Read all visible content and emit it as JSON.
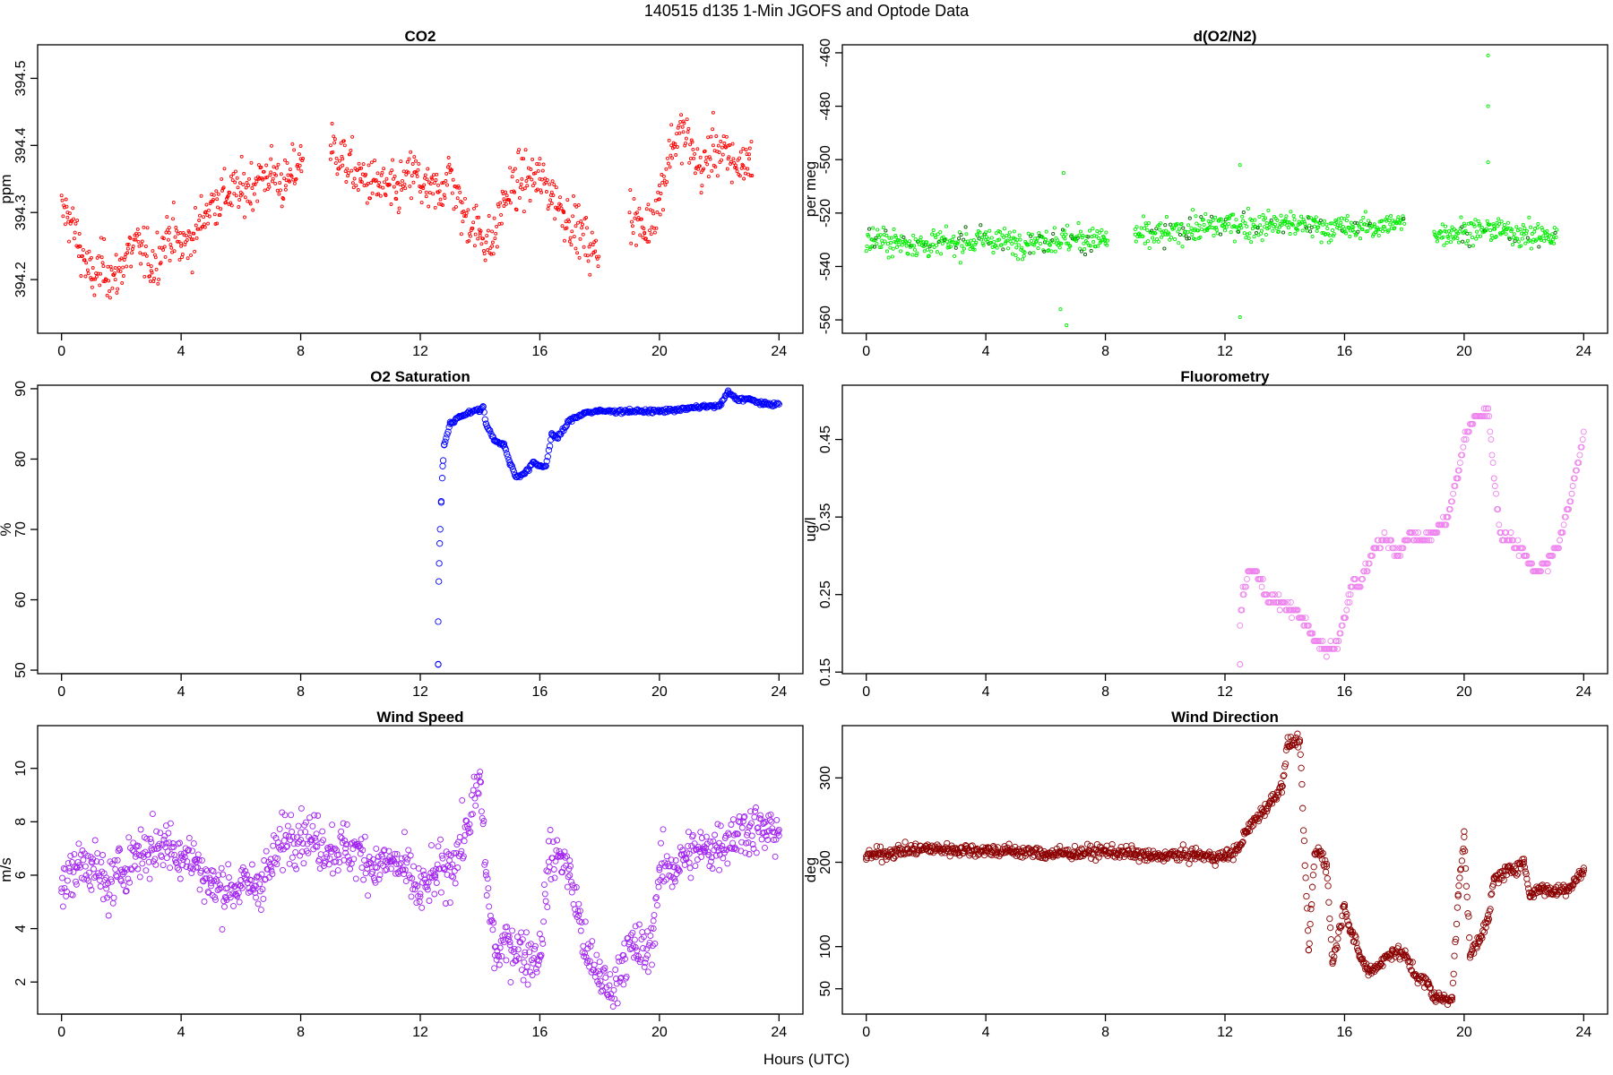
{
  "figure": {
    "title": "140515   d135   1-Min  JGOFS and Optode Data",
    "xlabel": "Hours (UTC)"
  },
  "chart_data": [
    {
      "id": "co2",
      "type": "scatter",
      "title": "CO2",
      "ylabel": "ppm",
      "color": "#ff0000",
      "xlim": [
        -0.8,
        24.8
      ],
      "ylim": [
        394.12,
        394.55
      ],
      "x_ticks": [
        0,
        4,
        8,
        12,
        16,
        20,
        24
      ],
      "y_ticks": [
        394.2,
        394.3,
        394.4,
        394.5
      ],
      "y_tick_labels": [
        "394.2",
        "394.3",
        "394.4",
        "394.5"
      ],
      "y_label_rotated": true,
      "marker": "small open circle",
      "point_interval_min": 1,
      "points": [
        [
          0.2,
          394.3
        ],
        [
          0.6,
          394.25
        ],
        [
          1.0,
          394.2
        ],
        [
          1.4,
          394.22
        ],
        [
          1.8,
          394.2
        ],
        [
          2.2,
          394.24
        ],
        [
          2.6,
          394.25
        ],
        [
          3.0,
          394.22
        ],
        [
          3.6,
          394.27
        ],
        [
          4.0,
          394.25
        ],
        [
          4.4,
          394.26
        ],
        [
          4.8,
          394.3
        ],
        [
          5.2,
          394.32
        ],
        [
          5.6,
          394.33
        ],
        [
          6.0,
          394.33
        ],
        [
          6.6,
          394.35
        ],
        [
          7.0,
          394.36
        ],
        [
          7.5,
          394.34
        ],
        [
          8.0,
          394.38
        ],
        [
          9.0,
          394.4
        ],
        [
          9.4,
          394.38
        ],
        [
          10.0,
          394.35
        ],
        [
          10.6,
          394.34
        ],
        [
          11.2,
          394.33
        ],
        [
          11.8,
          394.36
        ],
        [
          12.2,
          394.33
        ],
        [
          12.6,
          394.33
        ],
        [
          13.0,
          394.36
        ],
        [
          13.4,
          394.3
        ],
        [
          14.0,
          394.27
        ],
        [
          14.4,
          394.25
        ],
        [
          14.8,
          394.32
        ],
        [
          15.4,
          394.35
        ],
        [
          16.0,
          394.35
        ],
        [
          16.4,
          394.33
        ],
        [
          16.8,
          394.3
        ],
        [
          17.2,
          394.28
        ],
        [
          17.8,
          394.24
        ],
        [
          19.0,
          394.3
        ],
        [
          19.5,
          394.27
        ],
        [
          20.0,
          394.32
        ],
        [
          20.4,
          394.4
        ],
        [
          20.8,
          394.42
        ],
        [
          21.4,
          394.36
        ],
        [
          21.8,
          394.4
        ],
        [
          22.3,
          394.38
        ],
        [
          22.8,
          394.37
        ],
        [
          23.0,
          394.38
        ]
      ],
      "gaps_hours": [
        [
          8.1,
          9.0
        ],
        [
          18.0,
          19.0
        ]
      ],
      "x_range_hours": [
        0,
        23.1
      ]
    },
    {
      "id": "do2n2",
      "type": "scatter",
      "title": "d(O2/N2)",
      "ylabel": "per meg",
      "color": "#00ee00",
      "xlim": [
        -0.8,
        24.8
      ],
      "ylim": [
        -565,
        -457
      ],
      "x_ticks": [
        0,
        4,
        8,
        12,
        16,
        20,
        24
      ],
      "y_ticks": [
        -560,
        -540,
        -520,
        -500,
        -480,
        -460
      ],
      "y_tick_labels": [
        "-560",
        "-540",
        "-520",
        "-500",
        "-480",
        "-460"
      ],
      "y_label_rotated": true,
      "marker": "small open circle",
      "point_interval_min": 1,
      "points": [
        [
          0.2,
          -530
        ],
        [
          1.0,
          -531
        ],
        [
          2.0,
          -532
        ],
        [
          3.0,
          -531
        ],
        [
          4.0,
          -530
        ],
        [
          5.0,
          -531
        ],
        [
          6.0,
          -530
        ],
        [
          7.0,
          -530
        ],
        [
          8.0,
          -530
        ],
        [
          9.0,
          -528
        ],
        [
          10.0,
          -528
        ],
        [
          11.0,
          -526
        ],
        [
          12.0,
          -524
        ],
        [
          13.0,
          -525
        ],
        [
          14.0,
          -524
        ],
        [
          15.0,
          -525
        ],
        [
          16.0,
          -526
        ],
        [
          17.0,
          -525
        ],
        [
          18.0,
          -524
        ],
        [
          19.0,
          -527
        ],
        [
          20.0,
          -527
        ],
        [
          21.0,
          -526
        ],
        [
          22.0,
          -528
        ],
        [
          23.0,
          -529
        ]
      ],
      "outliers": [
        [
          6.6,
          -505
        ],
        [
          6.7,
          -562
        ],
        [
          6.5,
          -556
        ],
        [
          12.5,
          -502
        ],
        [
          12.5,
          -559
        ],
        [
          20.8,
          -461
        ],
        [
          20.8,
          -480
        ],
        [
          20.8,
          -501
        ]
      ],
      "gaps_hours": [
        [
          8.1,
          9.0
        ],
        [
          18.0,
          19.0
        ]
      ],
      "x_range_hours": [
        0,
        23.1
      ]
    },
    {
      "id": "o2sat",
      "type": "scatter",
      "title": "O2 Saturation",
      "ylabel": "%",
      "color": "#0000ff",
      "xlim": [
        -0.8,
        24.8
      ],
      "ylim": [
        49.5,
        90.5
      ],
      "x_ticks": [
        0,
        4,
        8,
        12,
        16,
        20,
        24
      ],
      "y_ticks": [
        50,
        60,
        70,
        80,
        90
      ],
      "y_tick_labels": [
        "50",
        "60",
        "70",
        "80",
        "90"
      ],
      "y_label_rotated": true,
      "marker": "open circle",
      "point_interval_min": 1,
      "points": [
        [
          12.6,
          50.8
        ],
        [
          12.6,
          56.9
        ],
        [
          12.62,
          62.6
        ],
        [
          12.65,
          68.0
        ],
        [
          12.7,
          74.0
        ],
        [
          12.75,
          79.0
        ],
        [
          12.8,
          82.0
        ],
        [
          13.0,
          85.0
        ],
        [
          13.3,
          86.0
        ],
        [
          13.6,
          86.6
        ],
        [
          14.0,
          87.0
        ],
        [
          14.1,
          87.4
        ],
        [
          14.2,
          85.0
        ],
        [
          14.5,
          82.6
        ],
        [
          14.8,
          82.0
        ],
        [
          15.0,
          79.5
        ],
        [
          15.2,
          77.5
        ],
        [
          15.5,
          78.0
        ],
        [
          15.8,
          79.5
        ],
        [
          16.0,
          79.0
        ],
        [
          16.2,
          79.0
        ],
        [
          16.4,
          83.5
        ],
        [
          16.6,
          83.0
        ],
        [
          17.0,
          85.5
        ],
        [
          17.5,
          86.6
        ],
        [
          18.0,
          86.8
        ],
        [
          19.0,
          86.8
        ],
        [
          20.0,
          86.8
        ],
        [
          20.5,
          87.0
        ],
        [
          21.0,
          87.2
        ],
        [
          21.5,
          87.5
        ],
        [
          22.0,
          87.5
        ],
        [
          22.3,
          89.5
        ],
        [
          22.6,
          88.5
        ],
        [
          23.0,
          88.5
        ],
        [
          23.5,
          87.8
        ],
        [
          24.0,
          87.8
        ]
      ],
      "x_range_hours": [
        12.6,
        24.0
      ]
    },
    {
      "id": "fluor",
      "type": "scatter",
      "title": "Fluorometry",
      "ylabel": "ug/l",
      "color": "#ee82ee",
      "xlim": [
        -0.8,
        24.8
      ],
      "ylim": [
        0.148,
        0.52
      ],
      "x_ticks": [
        0,
        4,
        8,
        12,
        16,
        20,
        24
      ],
      "y_ticks": [
        0.15,
        0.25,
        0.35,
        0.45
      ],
      "y_tick_labels": [
        "0.15",
        "0.25",
        "0.35",
        "0.45"
      ],
      "y_label_rotated": true,
      "marker": "open circle",
      "point_interval_min": 1,
      "points": [
        [
          12.5,
          0.16
        ],
        [
          12.5,
          0.21
        ],
        [
          12.6,
          0.25
        ],
        [
          12.8,
          0.28
        ],
        [
          13.0,
          0.28
        ],
        [
          13.4,
          0.25
        ],
        [
          13.8,
          0.24
        ],
        [
          14.2,
          0.23
        ],
        [
          14.6,
          0.22
        ],
        [
          15.0,
          0.19
        ],
        [
          15.4,
          0.18
        ],
        [
          15.8,
          0.19
        ],
        [
          16.0,
          0.22
        ],
        [
          16.2,
          0.26
        ],
        [
          16.6,
          0.27
        ],
        [
          17.0,
          0.31
        ],
        [
          17.4,
          0.32
        ],
        [
          17.8,
          0.3
        ],
        [
          18.2,
          0.33
        ],
        [
          18.6,
          0.32
        ],
        [
          19.0,
          0.33
        ],
        [
          19.4,
          0.35
        ],
        [
          19.8,
          0.4
        ],
        [
          20.0,
          0.45
        ],
        [
          20.4,
          0.48
        ],
        [
          20.8,
          0.49
        ],
        [
          21.0,
          0.4
        ],
        [
          21.2,
          0.33
        ],
        [
          21.6,
          0.32
        ],
        [
          22.0,
          0.3
        ],
        [
          22.4,
          0.28
        ],
        [
          22.8,
          0.29
        ],
        [
          23.2,
          0.32
        ],
        [
          23.6,
          0.38
        ],
        [
          23.8,
          0.42
        ],
        [
          24.0,
          0.46
        ]
      ],
      "x_range_hours": [
        12.5,
        24.0
      ]
    },
    {
      "id": "wspd",
      "type": "scatter",
      "title": "Wind Speed",
      "ylabel": "m/s",
      "color": "#a020f0",
      "xlim": [
        -0.8,
        24.8
      ],
      "ylim": [
        0.8,
        11.6
      ],
      "x_ticks": [
        0,
        4,
        8,
        12,
        16,
        20,
        24
      ],
      "y_ticks": [
        2,
        4,
        6,
        8,
        10
      ],
      "y_tick_labels": [
        "2",
        "4",
        "6",
        "8",
        "10"
      ],
      "y_label_rotated": true,
      "marker": "open circle",
      "point_interval_min": 1,
      "points": [
        [
          0.0,
          5.5
        ],
        [
          0.5,
          6.3
        ],
        [
          1.0,
          6.5
        ],
        [
          1.5,
          5.5
        ],
        [
          2.0,
          6.2
        ],
        [
          2.5,
          6.8
        ],
        [
          3.0,
          7.0
        ],
        [
          3.5,
          7.2
        ],
        [
          4.0,
          6.8
        ],
        [
          4.5,
          6.5
        ],
        [
          5.0,
          5.6
        ],
        [
          5.5,
          5.5
        ],
        [
          6.0,
          5.6
        ],
        [
          6.5,
          5.6
        ],
        [
          7.0,
          6.3
        ],
        [
          7.5,
          7.5
        ],
        [
          8.0,
          7.6
        ],
        [
          8.5,
          7.3
        ],
        [
          9.0,
          7.0
        ],
        [
          9.5,
          7.0
        ],
        [
          10.0,
          6.8
        ],
        [
          10.5,
          6.3
        ],
        [
          11.0,
          6.5
        ],
        [
          11.5,
          6.2
        ],
        [
          12.0,
          5.3
        ],
        [
          12.5,
          6.0
        ],
        [
          13.0,
          6.3
        ],
        [
          13.5,
          7.5
        ],
        [
          14.0,
          9.5
        ],
        [
          14.2,
          6.0
        ],
        [
          14.5,
          3.0
        ],
        [
          15.0,
          3.5
        ],
        [
          15.5,
          3.0
        ],
        [
          16.0,
          3.0
        ],
        [
          16.3,
          6.5
        ],
        [
          16.7,
          6.8
        ],
        [
          17.0,
          6.0
        ],
        [
          17.3,
          4.5
        ],
        [
          17.6,
          2.8
        ],
        [
          18.0,
          2.3
        ],
        [
          18.4,
          1.4
        ],
        [
          18.8,
          3.0
        ],
        [
          19.2,
          3.3
        ],
        [
          19.6,
          3.0
        ],
        [
          19.8,
          4.0
        ],
        [
          20.0,
          6.2
        ],
        [
          20.5,
          6.3
        ],
        [
          21.0,
          6.8
        ],
        [
          21.5,
          6.9
        ],
        [
          22.0,
          7.2
        ],
        [
          22.5,
          7.5
        ],
        [
          23.0,
          7.8
        ],
        [
          23.5,
          7.6
        ],
        [
          24.0,
          7.7
        ]
      ],
      "x_range_hours": [
        0,
        24.0
      ]
    },
    {
      "id": "wdir",
      "type": "scatter",
      "title": "Wind Direction",
      "ylabel": "deg",
      "color": "#8b0000",
      "xlim": [
        -0.8,
        24.8
      ],
      "ylim": [
        20,
        362
      ],
      "x_ticks": [
        0,
        4,
        8,
        12,
        16,
        20,
        24
      ],
      "y_ticks": [
        50,
        100,
        200,
        300
      ],
      "y_tick_labels": [
        "50",
        "100",
        "200",
        "300"
      ],
      "y_label_rotated": true,
      "marker": "open circle",
      "point_interval_min": 1,
      "points": [
        [
          0.0,
          207
        ],
        [
          1.0,
          213
        ],
        [
          2.0,
          216
        ],
        [
          3.0,
          215
        ],
        [
          4.0,
          214
        ],
        [
          5.0,
          213
        ],
        [
          6.0,
          210
        ],
        [
          7.0,
          211
        ],
        [
          8.0,
          213
        ],
        [
          9.0,
          210
        ],
        [
          9.5,
          206
        ],
        [
          10.0,
          208
        ],
        [
          11.0,
          209
        ],
        [
          11.6,
          206
        ],
        [
          12.0,
          207
        ],
        [
          12.4,
          214
        ],
        [
          12.7,
          235
        ],
        [
          13.0,
          250
        ],
        [
          13.5,
          270
        ],
        [
          13.9,
          290
        ],
        [
          14.1,
          340
        ],
        [
          14.5,
          345
        ],
        [
          14.8,
          96
        ],
        [
          15.0,
          210
        ],
        [
          15.2,
          213
        ],
        [
          15.4,
          195
        ],
        [
          15.6,
          80
        ],
        [
          16.0,
          150
        ],
        [
          16.2,
          120
        ],
        [
          16.5,
          90
        ],
        [
          16.8,
          70
        ],
        [
          17.2,
          80
        ],
        [
          17.6,
          95
        ],
        [
          18.0,
          90
        ],
        [
          18.4,
          65
        ],
        [
          18.8,
          55
        ],
        [
          19.0,
          40
        ],
        [
          19.3,
          38
        ],
        [
          19.6,
          40
        ],
        [
          19.8,
          160
        ],
        [
          20.0,
          230
        ],
        [
          20.2,
          90
        ],
        [
          20.5,
          110
        ],
        [
          20.8,
          130
        ],
        [
          21.0,
          180
        ],
        [
          21.5,
          190
        ],
        [
          22.0,
          200
        ],
        [
          22.2,
          160
        ],
        [
          22.5,
          170
        ],
        [
          23.0,
          165
        ],
        [
          23.5,
          170
        ],
        [
          24.0,
          190
        ]
      ],
      "x_range_hours": [
        0,
        24.0
      ]
    }
  ]
}
